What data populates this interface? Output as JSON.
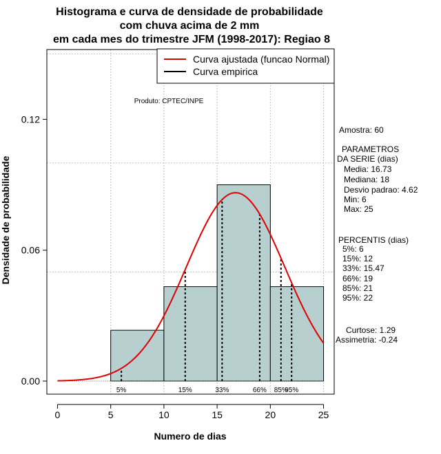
{
  "chart_data": {
    "type": "histogram",
    "title_lines": [
      "Histograma e curva de densidade de probabilidade",
      "com chuva acima de 2 mm",
      "em cada mes do trimestre JFM (1998-2017): Regiao 8"
    ],
    "xlabel": "Numero de dias",
    "ylabel": "Densidade de probabilidade",
    "xlim": [
      -1,
      26
    ],
    "ylim": [
      -0.006,
      0.152
    ],
    "x_ticks": [
      0,
      5,
      10,
      15,
      20,
      25
    ],
    "x_tick_labels": [
      "0",
      "5",
      "10",
      "15",
      "20",
      "25"
    ],
    "y_ticks": [
      0.0,
      0.06,
      0.12
    ],
    "y_tick_labels": [
      "0.00",
      "0.06",
      "0.12"
    ],
    "grid_x": [
      5,
      10,
      15,
      20,
      25
    ],
    "grid_y": [
      0.05,
      0.1,
      0.15
    ],
    "bins": [
      {
        "start": 5,
        "end": 10,
        "density": 0.0233
      },
      {
        "start": 10,
        "end": 15,
        "density": 0.0433
      },
      {
        "start": 15,
        "end": 20,
        "density": 0.09
      },
      {
        "start": 20,
        "end": 25,
        "density": 0.0433
      }
    ],
    "bar_color": "#b8cfcf",
    "curve_color": "#dd0000",
    "normal_fit": {
      "mean": 16.73,
      "sd": 4.62,
      "x_range": [
        0,
        25
      ]
    },
    "percentiles": [
      {
        "label": "5%",
        "x": 6
      },
      {
        "label": "15%",
        "x": 12
      },
      {
        "label": "33%",
        "x": 15.47
      },
      {
        "label": "66%",
        "x": 19
      },
      {
        "label": "85%",
        "x": 21
      },
      {
        "label": "95%",
        "x": 22
      }
    ],
    "legend": [
      {
        "label": "Curva ajustada (funcao Normal)",
        "color": "#dd0000"
      },
      {
        "label": "Curva empirica",
        "color": "#000000"
      }
    ],
    "legend_position": "top-right",
    "credit": "Produto: CPTEC/INPE",
    "side_panel": [
      "Amostra: 60",
      "PARAMETROS",
      "DA SERIE (dias)",
      "Media: 16.73",
      "Mediana: 18",
      "Desvio padrao: 4.62",
      "Min: 6",
      "Max: 25",
      "PERCENTIS (dias)",
      "5%: 6",
      "15%: 12",
      "33%: 15.47",
      "66%: 19",
      "85%: 21",
      "95%: 22",
      "Curtose: 1.29",
      "Assimetria: -0.24"
    ]
  }
}
